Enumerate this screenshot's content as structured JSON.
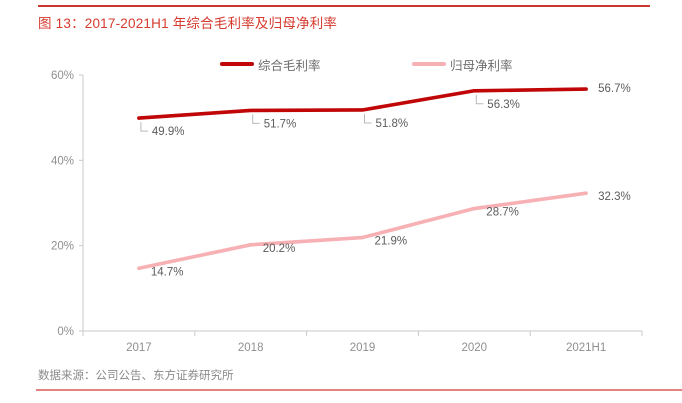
{
  "title": "图 13：2017-2021H1 年综合毛利率及归母净利率",
  "footer": {
    "source": "数据来源：公司公告、东方证券研究所"
  },
  "colors": {
    "title_red": "#d63a2e",
    "top_rule": "#c8382d",
    "bottom_rule": "#e2837e",
    "axis_gray": "#c9c9c9",
    "leader_gray": "#b9b9b9",
    "gross_margin_red": "#c00606",
    "net_margin_pink": "#f7b0b3"
  },
  "legend": {
    "items": [
      {
        "label": "综合毛利率"
      },
      {
        "label": "归母净利率"
      }
    ]
  },
  "chart_data": {
    "type": "line",
    "categories": [
      "2017",
      "2018",
      "2019",
      "2020",
      "2021H1"
    ],
    "series": [
      {
        "name": "综合毛利率",
        "color": "#c00606",
        "values": [
          49.9,
          51.7,
          51.8,
          56.3,
          56.7
        ],
        "point_labels": [
          "49.9%",
          "51.7%",
          "51.8%",
          "56.3%",
          "56.7%"
        ]
      },
      {
        "name": "归母净利率",
        "color": "#f7b0b3",
        "values": [
          14.7,
          20.2,
          21.9,
          28.7,
          32.3
        ],
        "point_labels": [
          "14.7%",
          "20.2%",
          "21.9%",
          "28.7%",
          "32.3%"
        ]
      }
    ],
    "title": "图 13：2017-2021H1 年综合毛利率及归母净利率",
    "xlabel": "",
    "ylabel": "",
    "ylim": [
      0,
      60
    ],
    "yticks": [
      0,
      20,
      40,
      60
    ],
    "ytick_labels": [
      "0%",
      "20%",
      "40%",
      "60%"
    ],
    "grid": false,
    "legend_position": "top"
  }
}
